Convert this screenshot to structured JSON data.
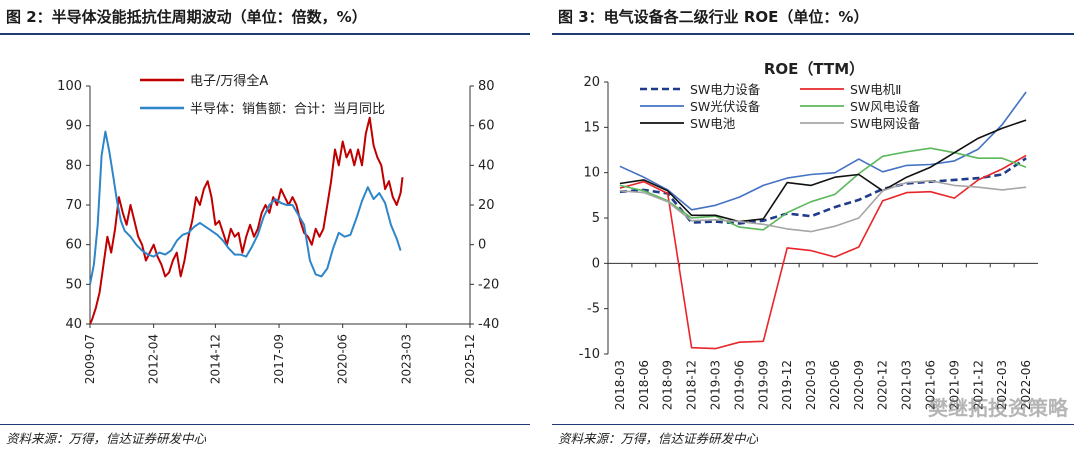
{
  "left_panel": {
    "fig_title": "图 2：半导体没能抵抗住周期波动（单位：倍数，%）",
    "source": "资料来源：万得，信达证券研发中心"
  },
  "right_panel": {
    "fig_title": "图 3：电气设备各二级行业 ROE（单位：%）",
    "source": "资料来源：万得，信达证券研发中心",
    "watermark": "樊继拓投资策略"
  },
  "chart_data": [
    {
      "type": "line",
      "title": "",
      "x_ticks": [
        "2009-07",
        "2012-04",
        "2014-12",
        "2017-09",
        "2020-06",
        "2023-03",
        "2025-12"
      ],
      "x_range": [
        "2009-07",
        "2025-12"
      ],
      "y_left": {
        "min": 40,
        "max": 100,
        "ticks": [
          40,
          50,
          60,
          70,
          80,
          90,
          100
        ]
      },
      "y_right": {
        "min": -40,
        "max": 80,
        "ticks": [
          -40,
          -20,
          0,
          20,
          40,
          60,
          80
        ]
      },
      "legend_position": "top-center",
      "colors": {
        "electronic_pe": "#c00000",
        "semi_sales": "#2e86c9"
      },
      "series": [
        {
          "name": "电子/万得全A",
          "axis": "left",
          "color": "#c00000",
          "points": [
            [
              "2009-07",
              40
            ],
            [
              "2009-08",
              41
            ],
            [
              "2009-10",
              44
            ],
            [
              "2009-12",
              48
            ],
            [
              "2010-02",
              55
            ],
            [
              "2010-04",
              62
            ],
            [
              "2010-06",
              58
            ],
            [
              "2010-08",
              64
            ],
            [
              "2010-10",
              72
            ],
            [
              "2010-12",
              68
            ],
            [
              "2011-02",
              65
            ],
            [
              "2011-04",
              70
            ],
            [
              "2011-06",
              66
            ],
            [
              "2011-08",
              62
            ],
            [
              "2011-10",
              60
            ],
            [
              "2011-12",
              56
            ],
            [
              "2012-02",
              58
            ],
            [
              "2012-04",
              60
            ],
            [
              "2012-06",
              57
            ],
            [
              "2012-08",
              55
            ],
            [
              "2012-10",
              52
            ],
            [
              "2012-12",
              53
            ],
            [
              "2013-02",
              56
            ],
            [
              "2013-04",
              58
            ],
            [
              "2013-06",
              52
            ],
            [
              "2013-08",
              56
            ],
            [
              "2013-10",
              62
            ],
            [
              "2013-12",
              66
            ],
            [
              "2014-02",
              72
            ],
            [
              "2014-04",
              70
            ],
            [
              "2014-06",
              74
            ],
            [
              "2014-08",
              76
            ],
            [
              "2014-10",
              72
            ],
            [
              "2014-12",
              65
            ],
            [
              "2015-02",
              66
            ],
            [
              "2015-04",
              63
            ],
            [
              "2015-06",
              60
            ],
            [
              "2015-08",
              64
            ],
            [
              "2015-10",
              62
            ],
            [
              "2015-12",
              63
            ],
            [
              "2016-02",
              58
            ],
            [
              "2016-04",
              62
            ],
            [
              "2016-06",
              65
            ],
            [
              "2016-08",
              62
            ],
            [
              "2016-10",
              64
            ],
            [
              "2016-12",
              68
            ],
            [
              "2017-02",
              70
            ],
            [
              "2017-04",
              68
            ],
            [
              "2017-06",
              72
            ],
            [
              "2017-08",
              70
            ],
            [
              "2017-10",
              74
            ],
            [
              "2017-12",
              72
            ],
            [
              "2018-02",
              70
            ],
            [
              "2018-04",
              72
            ],
            [
              "2018-06",
              70
            ],
            [
              "2018-08",
              66
            ],
            [
              "2018-10",
              63
            ],
            [
              "2018-12",
              62
            ],
            [
              "2019-02",
              60
            ],
            [
              "2019-04",
              64
            ],
            [
              "2019-06",
              62
            ],
            [
              "2019-08",
              64
            ],
            [
              "2019-10",
              70
            ],
            [
              "2019-12",
              76
            ],
            [
              "2020-02",
              84
            ],
            [
              "2020-04",
              80
            ],
            [
              "2020-06",
              86
            ],
            [
              "2020-08",
              82
            ],
            [
              "2020-10",
              84
            ],
            [
              "2020-12",
              80
            ],
            [
              "2021-02",
              84
            ],
            [
              "2021-04",
              80
            ],
            [
              "2021-06",
              88
            ],
            [
              "2021-08",
              92
            ],
            [
              "2021-10",
              85
            ],
            [
              "2021-12",
              82
            ],
            [
              "2022-02",
              80
            ],
            [
              "2022-04",
              74
            ],
            [
              "2022-06",
              76
            ],
            [
              "2022-08",
              72
            ],
            [
              "2022-10",
              70
            ],
            [
              "2022-12",
              73
            ],
            [
              "2023-01",
              77
            ]
          ]
        },
        {
          "name": "半导体：销售额：合计：当月同比",
          "axis": "right",
          "color": "#2e86c9",
          "points": [
            [
              "2009-07",
              -20
            ],
            [
              "2009-09",
              -10
            ],
            [
              "2009-11",
              10
            ],
            [
              "2010-01",
              45
            ],
            [
              "2010-03",
              57
            ],
            [
              "2010-05",
              47
            ],
            [
              "2010-07",
              35
            ],
            [
              "2010-09",
              22
            ],
            [
              "2010-11",
              12
            ],
            [
              "2011-01",
              7
            ],
            [
              "2011-04",
              4
            ],
            [
              "2011-07",
              0
            ],
            [
              "2011-10",
              -3
            ],
            [
              "2012-01",
              -5
            ],
            [
              "2012-04",
              -6
            ],
            [
              "2012-07",
              -4
            ],
            [
              "2012-10",
              -5
            ],
            [
              "2013-01",
              -3
            ],
            [
              "2013-04",
              2
            ],
            [
              "2013-07",
              5
            ],
            [
              "2013-10",
              6
            ],
            [
              "2014-01",
              9
            ],
            [
              "2014-04",
              11
            ],
            [
              "2014-07",
              9
            ],
            [
              "2014-10",
              7
            ],
            [
              "2015-01",
              5
            ],
            [
              "2015-04",
              2
            ],
            [
              "2015-07",
              -2
            ],
            [
              "2015-10",
              -5
            ],
            [
              "2016-01",
              -5
            ],
            [
              "2016-04",
              -6
            ],
            [
              "2016-07",
              -1
            ],
            [
              "2016-10",
              5
            ],
            [
              "2017-01",
              14
            ],
            [
              "2017-04",
              20
            ],
            [
              "2017-07",
              23
            ],
            [
              "2017-10",
              21
            ],
            [
              "2018-01",
              20
            ],
            [
              "2018-04",
              20
            ],
            [
              "2018-07",
              15
            ],
            [
              "2018-10",
              10
            ],
            [
              "2019-01",
              -8
            ],
            [
              "2019-04",
              -15
            ],
            [
              "2019-07",
              -16
            ],
            [
              "2019-10",
              -12
            ],
            [
              "2020-01",
              -2
            ],
            [
              "2020-04",
              6
            ],
            [
              "2020-07",
              4
            ],
            [
              "2020-10",
              5
            ],
            [
              "2021-01",
              13
            ],
            [
              "2021-04",
              22
            ],
            [
              "2021-07",
              29
            ],
            [
              "2021-10",
              23
            ],
            [
              "2022-01",
              26
            ],
            [
              "2022-04",
              21
            ],
            [
              "2022-07",
              10
            ],
            [
              "2022-10",
              3
            ],
            [
              "2022-12",
              -3
            ]
          ]
        }
      ]
    },
    {
      "type": "line",
      "title": "ROE（TTM）",
      "categories": [
        "2018-03",
        "2018-06",
        "2018-09",
        "2018-12",
        "2019-03",
        "2019-06",
        "2019-09",
        "2019-12",
        "2020-03",
        "2020-06",
        "2020-09",
        "2020-12",
        "2021-03",
        "2021-06",
        "2021-09",
        "2021-12",
        "2022-03",
        "2022-06"
      ],
      "y_range": [
        -10,
        20
      ],
      "y_ticks": [
        -10,
        -5,
        0,
        5,
        10,
        15,
        20
      ],
      "legend_position": "top",
      "series": [
        {
          "name": "SW电力设备",
          "color": "#1f3b8c",
          "dash": true,
          "values": [
            7.9,
            8.1,
            7.7,
            4.5,
            4.6,
            4.4,
            4.7,
            5.5,
            5.2,
            6.2,
            7.0,
            8.2,
            8.8,
            9.0,
            9.2,
            9.4,
            9.8,
            11.6
          ]
        },
        {
          "name": "SW电机Ⅱ",
          "color": "#e8262a",
          "dash": false,
          "values": [
            8.3,
            9.0,
            7.7,
            -9.3,
            -9.4,
            -8.7,
            -8.6,
            1.7,
            1.4,
            0.7,
            1.8,
            6.9,
            7.8,
            7.9,
            7.2,
            9.2,
            10.4,
            11.9
          ]
        },
        {
          "name": "SW光伏设备",
          "color": "#4472c4",
          "dash": false,
          "values": [
            10.7,
            9.5,
            8.1,
            5.9,
            6.4,
            7.3,
            8.6,
            9.4,
            9.8,
            10.0,
            11.5,
            10.1,
            10.8,
            10.9,
            11.3,
            12.6,
            15.3,
            18.9
          ]
        },
        {
          "name": "SW风电设备",
          "color": "#5cb85c",
          "dash": false,
          "values": [
            8.6,
            8.0,
            6.9,
            5.0,
            5.2,
            4.0,
            3.7,
            5.6,
            6.8,
            7.6,
            9.9,
            11.8,
            12.3,
            12.7,
            12.2,
            11.6,
            11.6,
            10.6
          ]
        },
        {
          "name": "SW电池",
          "color": "#111111",
          "dash": false,
          "values": [
            8.8,
            9.2,
            8.0,
            5.3,
            5.3,
            4.6,
            4.9,
            8.9,
            8.6,
            9.5,
            9.8,
            8.0,
            9.5,
            10.6,
            12.2,
            13.8,
            14.9,
            15.8
          ]
        },
        {
          "name": "SW电网设备",
          "color": "#a6a6a6",
          "dash": false,
          "values": [
            8.0,
            7.8,
            6.8,
            4.7,
            4.8,
            4.6,
            4.3,
            3.8,
            3.5,
            4.1,
            5.0,
            8.0,
            8.9,
            9.1,
            8.6,
            8.4,
            8.1,
            8.4
          ]
        }
      ]
    }
  ]
}
